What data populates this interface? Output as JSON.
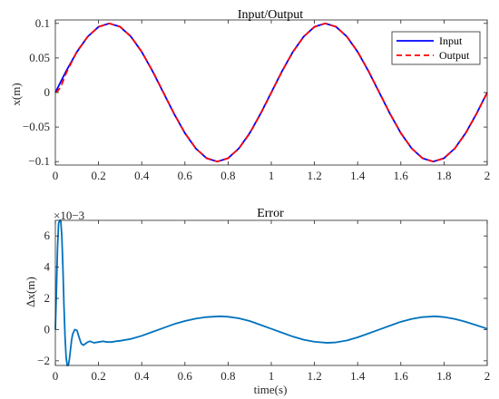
{
  "chart_data": [
    {
      "type": "line",
      "title": "Input/Output",
      "xlabel": "",
      "ylabel": "x(m)",
      "xlim": [
        0,
        2
      ],
      "ylim": [
        -0.105,
        0.105
      ],
      "x_ticks": [
        0,
        0.2,
        0.4,
        0.6,
        0.8,
        1,
        1.2,
        1.4,
        1.6,
        1.8,
        2
      ],
      "x_tick_labels": [
        "0",
        "0.2",
        "0.4",
        "0.6",
        "0.8",
        "1",
        "1.2",
        "1.4",
        "1.6",
        "1.8",
        "2"
      ],
      "y_ticks": [
        -0.1,
        -0.05,
        0,
        0.05,
        0.1
      ],
      "y_tick_labels": [
        "-0.1",
        "-0.05",
        "0",
        "0.05",
        "0.1"
      ],
      "grid": false,
      "legend_position": "top-right",
      "series": [
        {
          "name": "Input",
          "color": "#0000ff",
          "style": "solid",
          "x": [
            0,
            0.05,
            0.1,
            0.15,
            0.2,
            0.25,
            0.3,
            0.35,
            0.4,
            0.45,
            0.5,
            0.55,
            0.6,
            0.65,
            0.7,
            0.75,
            0.8,
            0.85,
            0.9,
            0.95,
            1,
            1.05,
            1.1,
            1.15,
            1.2,
            1.25,
            1.3,
            1.35,
            1.4,
            1.45,
            1.5,
            1.55,
            1.6,
            1.65,
            1.7,
            1.75,
            1.8,
            1.85,
            1.9,
            1.95,
            2
          ],
          "y": [
            0,
            0.0309,
            0.0588,
            0.0809,
            0.0951,
            0.1,
            0.0951,
            0.0809,
            0.0588,
            0.0309,
            0,
            -0.0309,
            -0.0588,
            -0.0809,
            -0.0951,
            -0.1,
            -0.0951,
            -0.0809,
            -0.0588,
            -0.0309,
            0,
            0.0309,
            0.0588,
            0.0809,
            0.0951,
            0.1,
            0.0951,
            0.0809,
            0.0588,
            0.0309,
            0,
            -0.0309,
            -0.0588,
            -0.0809,
            -0.0951,
            -0.1,
            -0.0951,
            -0.0809,
            -0.0588,
            -0.0309,
            0
          ]
        },
        {
          "name": "Output",
          "color": "#ff0000",
          "style": "dashed",
          "x": [
            0,
            0.01,
            0.02,
            0.03,
            0.05,
            0.1,
            0.15,
            0.2,
            0.25,
            0.3,
            0.35,
            0.4,
            0.45,
            0.5,
            0.55,
            0.6,
            0.65,
            0.7,
            0.75,
            0.8,
            0.85,
            0.9,
            0.95,
            1,
            1.05,
            1.1,
            1.15,
            1.2,
            1.25,
            1.3,
            1.35,
            1.4,
            1.45,
            1.5,
            1.55,
            1.6,
            1.65,
            1.7,
            1.75,
            1.8,
            1.85,
            1.9,
            1.95,
            2
          ],
          "y": [
            0,
            0.002,
            0.006,
            0.012,
            0.028,
            0.0594,
            0.0809,
            0.095,
            0.1,
            0.0952,
            0.0811,
            0.0591,
            0.0313,
            0.0004,
            -0.0306,
            -0.0585,
            -0.0807,
            -0.095,
            -0.1,
            -0.0952,
            -0.0811,
            -0.0591,
            -0.0313,
            -0.0004,
            0.0306,
            0.0585,
            0.0807,
            0.095,
            0.1,
            0.0952,
            0.0811,
            0.0591,
            0.0313,
            0.0004,
            -0.0306,
            -0.0585,
            -0.0807,
            -0.095,
            -0.1,
            -0.0952,
            -0.0811,
            -0.0591,
            -0.0313,
            -0.0001
          ]
        }
      ]
    },
    {
      "type": "line",
      "title": "Error",
      "xlabel": "time(s)",
      "ylabel": "Δx(m)",
      "xlim": [
        0,
        2
      ],
      "ylim": [
        -2.3,
        7
      ],
      "scale_label": "×10−3",
      "x_ticks": [
        0,
        0.2,
        0.4,
        0.6,
        0.8,
        1,
        1.2,
        1.4,
        1.6,
        1.8,
        2
      ],
      "x_tick_labels": [
        "0",
        "0.2",
        "0.4",
        "0.6",
        "0.8",
        "1",
        "1.2",
        "1.4",
        "1.6",
        "1.8",
        "2"
      ],
      "y_ticks": [
        -2,
        0,
        2,
        4,
        6
      ],
      "y_tick_labels": [
        "-2",
        "0",
        "2",
        "4",
        "6"
      ],
      "grid": false,
      "series": [
        {
          "color": "#0072bd",
          "style": "solid",
          "x": [
            0,
            0.005,
            0.01,
            0.015,
            0.02,
            0.025,
            0.03,
            0.035,
            0.04,
            0.045,
            0.05,
            0.055,
            0.06,
            0.065,
            0.07,
            0.075,
            0.08,
            0.09,
            0.1,
            0.11,
            0.12,
            0.13,
            0.14,
            0.15,
            0.16,
            0.17,
            0.18,
            0.2,
            0.22,
            0.24,
            0.26,
            0.28,
            0.3,
            0.35,
            0.4,
            0.45,
            0.5,
            0.55,
            0.6,
            0.65,
            0.7,
            0.76,
            0.8,
            0.85,
            0.9,
            0.95,
            1,
            1.05,
            1.1,
            1.15,
            1.2,
            1.26,
            1.3,
            1.35,
            1.4,
            1.45,
            1.5,
            1.55,
            1.6,
            1.65,
            1.7,
            1.76,
            1.8,
            1.85,
            1.9,
            1.95,
            2
          ],
          "y": [
            0,
            2.5,
            5.2,
            6.8,
            7.0,
            7.0,
            6.0,
            4.0,
            1.5,
            -0.5,
            -1.8,
            -2.3,
            -2.3,
            -1.9,
            -1.3,
            -0.7,
            -0.3,
            0,
            -0.05,
            -0.5,
            -0.9,
            -1.0,
            -0.9,
            -0.8,
            -0.75,
            -0.8,
            -0.85,
            -0.8,
            -0.75,
            -0.8,
            -0.8,
            -0.75,
            -0.72,
            -0.6,
            -0.4,
            -0.15,
            0.1,
            0.35,
            0.55,
            0.7,
            0.8,
            0.85,
            0.82,
            0.72,
            0.55,
            0.3,
            0.05,
            -0.2,
            -0.45,
            -0.65,
            -0.78,
            -0.85,
            -0.82,
            -0.7,
            -0.5,
            -0.25,
            0,
            0.25,
            0.5,
            0.68,
            0.8,
            0.85,
            0.8,
            0.68,
            0.5,
            0.28,
            0.05
          ]
        }
      ]
    }
  ]
}
